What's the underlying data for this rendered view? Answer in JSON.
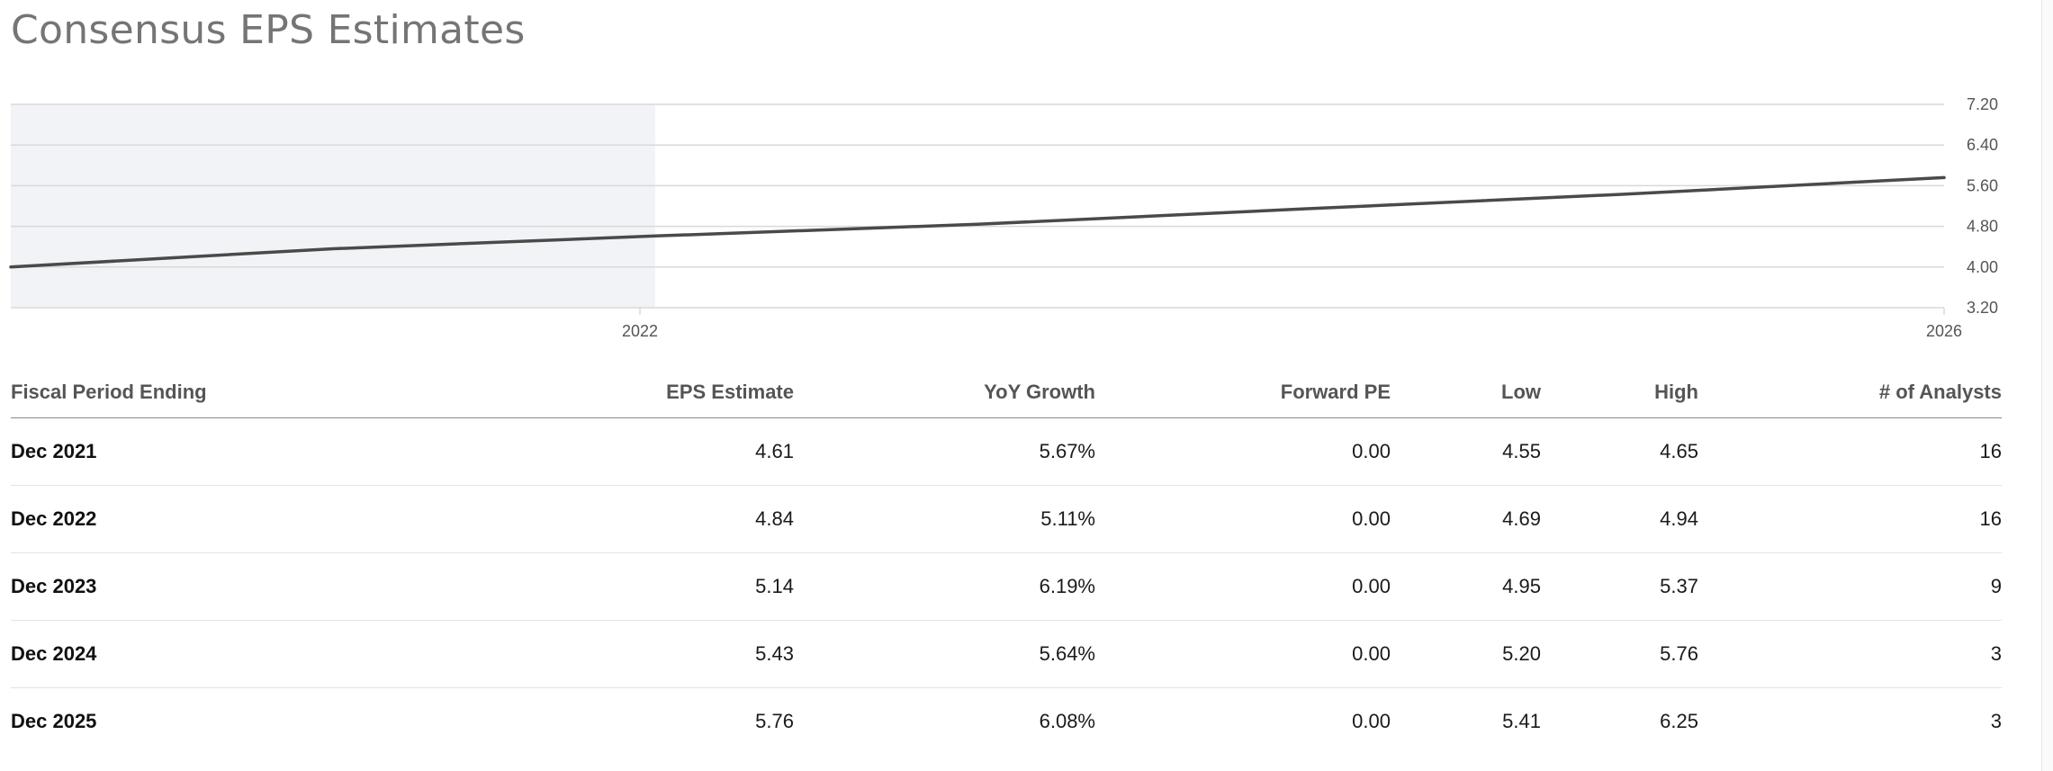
{
  "title": "Consensus EPS Estimates",
  "colors": {
    "line": "#4a4a4a",
    "history_band": "#f2f3f6",
    "grid": "#d9d9d9",
    "title": "#757575"
  },
  "chart_data": {
    "type": "line",
    "title": "",
    "xlabel": "",
    "ylabel": "",
    "x_ticks": [
      "2022",
      "2026"
    ],
    "y_ticks": [
      "7.20",
      "6.40",
      "5.60",
      "4.80",
      "4.00",
      "3.20"
    ],
    "ylim": [
      3.2,
      7.2
    ],
    "xlim": [
      "2019-12",
      "2025-12"
    ],
    "y_axis_position": "right",
    "grid": true,
    "historical_shading_until": "2021-12",
    "series": [
      {
        "points": [
          {
            "x": "2019-12",
            "y": 4.0
          },
          {
            "x": "2020-06",
            "y": 4.18
          },
          {
            "x": "2020-12",
            "y": 4.36
          },
          {
            "x": "2021-12",
            "y": 4.61
          },
          {
            "x": "2022-12",
            "y": 4.84
          },
          {
            "x": "2023-12",
            "y": 5.14
          },
          {
            "x": "2024-12",
            "y": 5.43
          },
          {
            "x": "2025-12",
            "y": 5.76
          }
        ]
      }
    ]
  },
  "table": {
    "columns": [
      "Fiscal Period Ending",
      "EPS Estimate",
      "YoY Growth",
      "Forward PE",
      "Low",
      "High",
      "# of Analysts"
    ],
    "rows": [
      [
        "Dec 2021",
        "4.61",
        "5.67%",
        "0.00",
        "4.55",
        "4.65",
        "16"
      ],
      [
        "Dec 2022",
        "4.84",
        "5.11%",
        "0.00",
        "4.69",
        "4.94",
        "16"
      ],
      [
        "Dec 2023",
        "5.14",
        "6.19%",
        "0.00",
        "4.95",
        "5.37",
        "9"
      ],
      [
        "Dec 2024",
        "5.43",
        "5.64%",
        "0.00",
        "5.20",
        "5.76",
        "3"
      ],
      [
        "Dec 2025",
        "5.76",
        "6.08%",
        "0.00",
        "5.41",
        "6.25",
        "3"
      ]
    ]
  }
}
